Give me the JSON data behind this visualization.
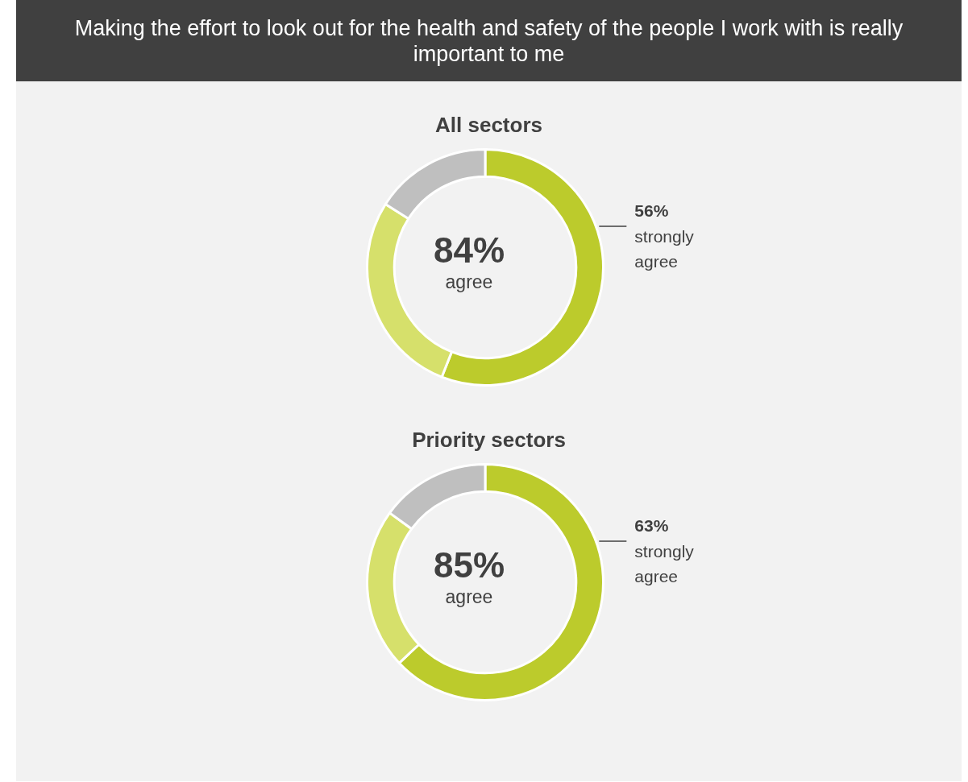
{
  "chart_data": [
    {
      "type": "donut",
      "title": "Making the effort to look out for the health and safety of the people I work with is really important to me",
      "subtitle": "All sectors",
      "categories": [
        "strongly agree",
        null,
        null
      ],
      "values": [
        56,
        28,
        16
      ],
      "value_labels": [
        "56%",
        null,
        null
      ],
      "colors": [
        "#bccb2c",
        "#d6e06b",
        "#bfbfbf"
      ],
      "annotations": [
        "84%",
        "agree"
      ],
      "legend": false
    },
    {
      "type": "donut",
      "title": "Priority sectors",
      "categories": [
        "strongly agree",
        null,
        null
      ],
      "values": [
        63,
        22,
        15
      ],
      "value_labels": [
        "63%",
        null,
        null
      ],
      "colors": [
        "#bccb2c",
        "#d6e06b",
        "#bfbfbf"
      ],
      "annotations": [
        "85%",
        "agree"
      ],
      "legend": false
    }
  ]
}
